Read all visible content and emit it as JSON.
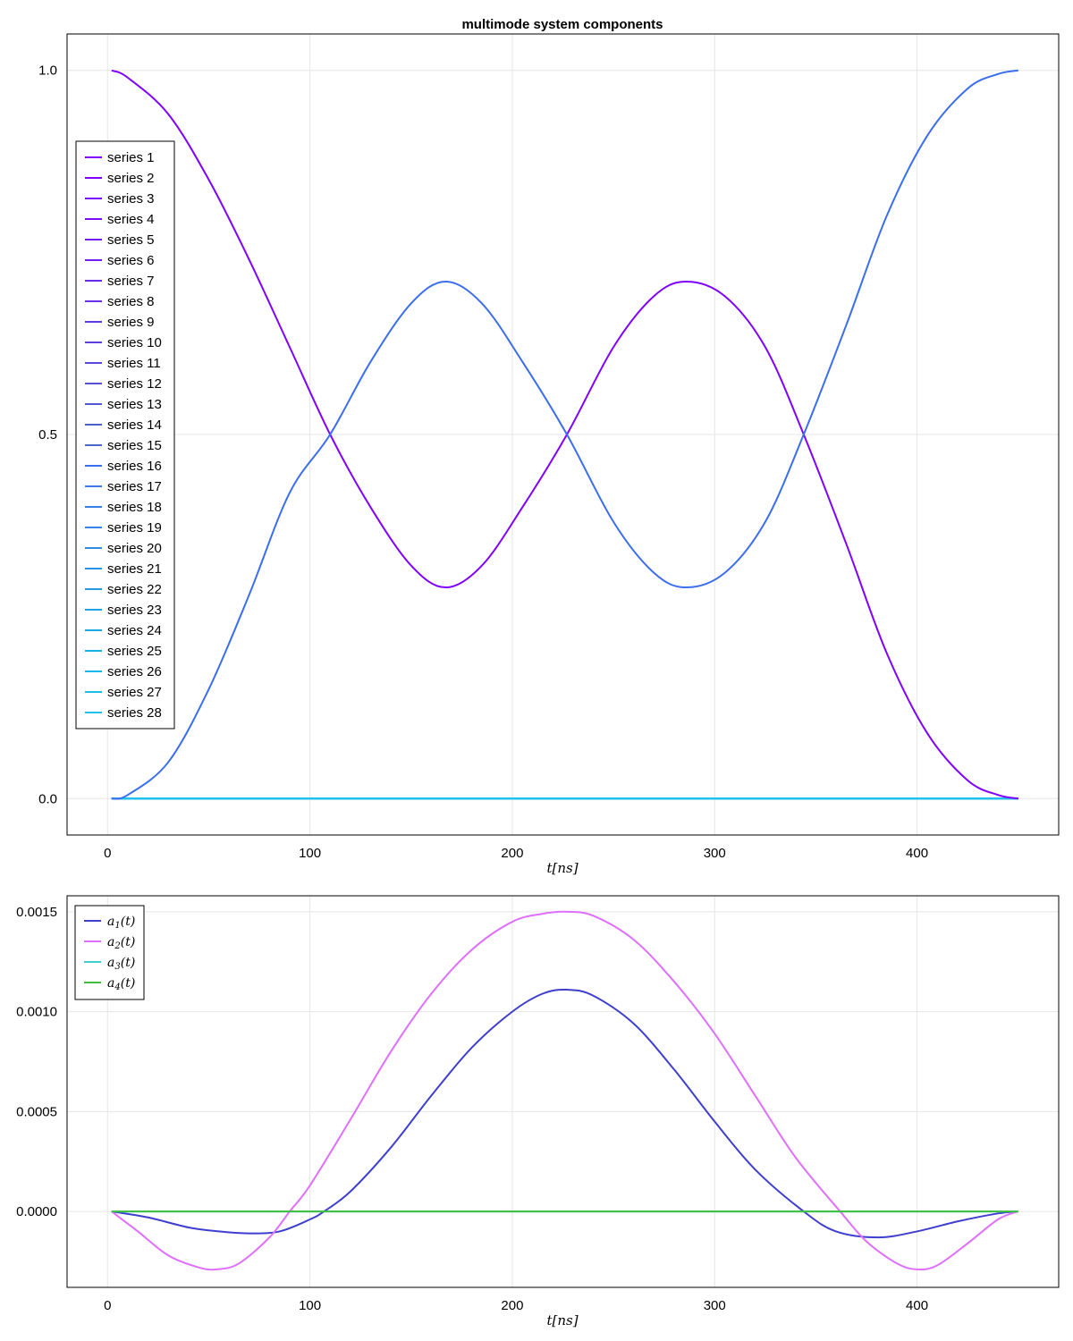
{
  "chart_data": [
    {
      "type": "line",
      "title": "multimode system components",
      "xlabel": "t[ns]",
      "ylabel": "",
      "xlim": [
        -20,
        470
      ],
      "ylim": [
        -0.05,
        1.05
      ],
      "xticks": [
        0,
        100,
        200,
        300,
        400
      ],
      "xtick_labels": [
        "0",
        "100",
        "200",
        "300",
        "400"
      ],
      "yticks": [
        0,
        0.5,
        1
      ],
      "ytick_labels": [
        "0.0",
        "0.5",
        "1.0"
      ],
      "grid": true,
      "legend_position": "left",
      "curve_shapes": {
        "population_a": {
          "x": [
            2,
            10,
            30,
            50,
            70,
            90,
            110,
            130,
            150,
            167,
            185,
            205,
            227,
            250,
            270,
            286,
            305,
            325,
            344,
            365,
            385,
            405,
            425,
            440,
            450
          ],
          "y": [
            1.0,
            0.99,
            0.94,
            0.85,
            0.74,
            0.62,
            0.5,
            0.4,
            0.32,
            0.29,
            0.32,
            0.4,
            0.5,
            0.62,
            0.69,
            0.71,
            0.69,
            0.62,
            0.5,
            0.35,
            0.2,
            0.09,
            0.025,
            0.005,
            0.0
          ]
        },
        "population_b": {
          "x": [
            2,
            10,
            30,
            50,
            70,
            90,
            110,
            130,
            150,
            167,
            185,
            205,
            227,
            250,
            270,
            286,
            305,
            325,
            344,
            365,
            385,
            405,
            425,
            440,
            450
          ],
          "y": [
            0.0,
            0.005,
            0.05,
            0.15,
            0.28,
            0.42,
            0.5,
            0.6,
            0.68,
            0.71,
            0.68,
            0.6,
            0.5,
            0.38,
            0.31,
            0.29,
            0.31,
            0.38,
            0.5,
            0.65,
            0.8,
            0.91,
            0.975,
            0.995,
            1.0
          ]
        },
        "zero": {
          "x": [
            2,
            450
          ],
          "y": [
            0.0,
            0.0
          ]
        }
      },
      "series": [
        {
          "name": "series 1",
          "color": "#8000ff",
          "curve": "population_a"
        },
        {
          "name": "series 2",
          "color": "#7f00fe",
          "curve": "zero"
        },
        {
          "name": "series 3",
          "color": "#7c08fb",
          "curve": "zero"
        },
        {
          "name": "series 4",
          "color": "#780ff7",
          "curve": "zero"
        },
        {
          "name": "series 5",
          "color": "#7417f3",
          "curve": "zero"
        },
        {
          "name": "series 6",
          "color": "#701fef",
          "curve": "zero"
        },
        {
          "name": "series 7",
          "color": "#6b27eb",
          "curve": "zero"
        },
        {
          "name": "series 8",
          "color": "#672fe7",
          "curve": "zero"
        },
        {
          "name": "series 9",
          "color": "#6337e3",
          "curve": "zero"
        },
        {
          "name": "series 10",
          "color": "#5e3fdf",
          "curve": "zero"
        },
        {
          "name": "series 11",
          "color": "#5a47db",
          "curve": "zero"
        },
        {
          "name": "series 12",
          "color": "#5550d6",
          "curve": "zero"
        },
        {
          "name": "series 13",
          "color": "#5158d2",
          "curve": "zero"
        },
        {
          "name": "series 14",
          "color": "#4c5fce",
          "curve": "zero"
        },
        {
          "name": "series 15",
          "color": "#4767ca",
          "curve": "zero"
        },
        {
          "name": "series 16",
          "color": "#3b6eef",
          "curve": "population_b"
        },
        {
          "name": "series 17",
          "color": "#3e77e8",
          "curve": "zero"
        },
        {
          "name": "series 18",
          "color": "#397ee7",
          "curve": "zero"
        },
        {
          "name": "series 19",
          "color": "#3486e6",
          "curve": "zero"
        },
        {
          "name": "series 20",
          "color": "#2f8de5",
          "curve": "zero"
        },
        {
          "name": "series 21",
          "color": "#2a94e4",
          "curve": "zero"
        },
        {
          "name": "series 22",
          "color": "#259be4",
          "curve": "zero"
        },
        {
          "name": "series 23",
          "color": "#20a2e5",
          "curve": "zero"
        },
        {
          "name": "series 24",
          "color": "#1ba9e6",
          "curve": "zero"
        },
        {
          "name": "series 25",
          "color": "#17b0e7",
          "curve": "zero"
        },
        {
          "name": "series 26",
          "color": "#15b6e8",
          "curve": "zero"
        },
        {
          "name": "series 27",
          "color": "#1abcea",
          "curve": "zero"
        },
        {
          "name": "series 28",
          "color": "#22c2ec",
          "curve": "zero"
        }
      ]
    },
    {
      "type": "line",
      "title": "",
      "xlabel": "t[ns]",
      "ylabel": "",
      "xlim": [
        -20,
        470
      ],
      "ylim": [
        -0.00038,
        0.00158
      ],
      "xticks": [
        0,
        100,
        200,
        300,
        400
      ],
      "xtick_labels": [
        "0",
        "100",
        "200",
        "300",
        "400"
      ],
      "yticks": [
        0,
        0.0005,
        0.001,
        0.0015
      ],
      "ytick_labels": [
        "0.0000",
        "0.0005",
        "0.0010",
        "0.0015"
      ],
      "grid": true,
      "legend_position": "top-left",
      "series": [
        {
          "name": "a",
          "subscript": "1",
          "suffix": "(t)",
          "color": "#3f3fcf",
          "x": [
            2,
            20,
            40,
            55,
            70,
            85,
            100,
            107,
            120,
            140,
            160,
            180,
            200,
            215,
            227,
            240,
            260,
            280,
            300,
            320,
            344,
            360,
            381,
            400,
            420,
            440,
            450
          ],
          "y": [
            0.0,
            -3e-05,
            -8e-05,
            -0.0001,
            -0.00011,
            -0.0001,
            -4e-05,
            0.0,
            0.0001,
            0.00032,
            0.00058,
            0.00082,
            0.001,
            0.00109,
            0.00111,
            0.00108,
            0.00094,
            0.00071,
            0.00045,
            0.00021,
            0.0,
            -0.0001,
            -0.00013,
            -0.0001,
            -5e-05,
            -1e-05,
            0.0
          ]
        },
        {
          "name": "a",
          "subscript": "2",
          "suffix": "(t)",
          "color": "#df6fff",
          "x": [
            2,
            15,
            30,
            45,
            54,
            65,
            80,
            90,
            100,
            120,
            140,
            160,
            180,
            200,
            215,
            227,
            240,
            260,
            280,
            300,
            320,
            340,
            362,
            375,
            390,
            400,
            410,
            425,
            440,
            450
          ],
          "y": [
            0.0,
            -0.0001,
            -0.00022,
            -0.00028,
            -0.00029,
            -0.00026,
            -0.00013,
            0.0,
            0.00013,
            0.00046,
            0.0008,
            0.00109,
            0.00131,
            0.00145,
            0.00149,
            0.0015,
            0.00148,
            0.00136,
            0.00115,
            0.00089,
            0.00058,
            0.00027,
            0.0,
            -0.00015,
            -0.00026,
            -0.00029,
            -0.00027,
            -0.00016,
            -4e-05,
            0.0
          ]
        },
        {
          "name": "a",
          "subscript": "3",
          "suffix": "(t)",
          "color": "#3fcfcf",
          "x": [
            2,
            450
          ],
          "y": [
            0.0,
            0.0
          ]
        },
        {
          "name": "a",
          "subscript": "4",
          "suffix": "(t)",
          "color": "#3fbf3f",
          "x": [
            2,
            450
          ],
          "y": [
            0.0,
            0.0
          ]
        }
      ]
    }
  ]
}
